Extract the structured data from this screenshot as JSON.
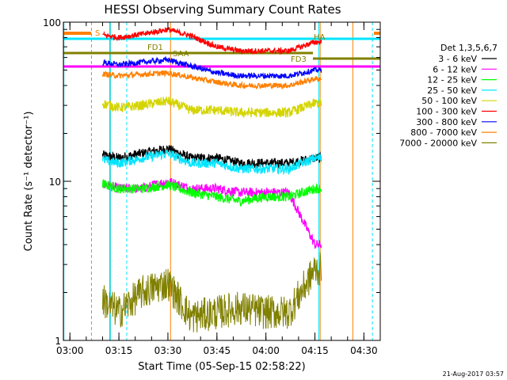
{
  "chart_data": {
    "type": "line",
    "title": "HESSI Observing Summary Count Rates",
    "xlabel": "Start Time (05-Sep-15 02:58:22)",
    "ylabel": "Count Rate (s⁻¹ detector⁻¹)",
    "yscale": "log",
    "xlim": [
      "02:58",
      "04:35"
    ],
    "ylim": [
      1,
      100
    ],
    "x_ticks": [
      "03:00",
      "03:15",
      "03:30",
      "03:45",
      "04:00",
      "04:15",
      "04:30"
    ],
    "y_ticks": [
      "1",
      "10",
      "100"
    ],
    "legend_title": "Det 1,3,5,6,7",
    "legend_position": "right",
    "x": [
      "03:07",
      "03:15",
      "03:22",
      "03:30",
      "03:37",
      "03:45",
      "03:52",
      "04:00",
      "04:07",
      "04:15"
    ],
    "series": [
      {
        "name": "3 - 6 keV",
        "color": "#000000",
        "values": [
          15,
          14,
          15,
          16,
          14,
          14,
          13,
          13,
          13,
          14
        ]
      },
      {
        "name": "6 - 12 keV",
        "color": "#ff00ff",
        "values": [
          10,
          9,
          9,
          10,
          9,
          9,
          8.5,
          8.5,
          8.5,
          4
        ]
      },
      {
        "name": "12 - 25 keV",
        "color": "#00ff00",
        "values": [
          10,
          9,
          9,
          9.5,
          8.5,
          8,
          7.5,
          8,
          8,
          9
        ]
      },
      {
        "name": "25 - 50 keV",
        "color": "#00e5ff",
        "values": [
          14,
          13,
          14,
          15,
          13,
          13,
          12,
          12,
          12,
          14
        ]
      },
      {
        "name": "50 - 100 keV",
        "color": "#d4d400",
        "values": [
          32,
          29,
          30,
          32,
          28,
          28,
          27,
          27,
          27,
          31
        ]
      },
      {
        "name": "100 - 300 keV",
        "color": "#ff0000",
        "values": [
          85,
          80,
          84,
          90,
          82,
          70,
          66,
          66,
          66,
          75
        ]
      },
      {
        "name": "300 - 800 keV",
        "color": "#0000ff",
        "values": [
          57,
          54,
          56,
          58,
          53,
          48,
          46,
          46,
          46,
          50
        ]
      },
      {
        "name": "800 - 7000 keV",
        "color": "#ff8000",
        "values": [
          48,
          46,
          47,
          48,
          45,
          42,
          40,
          40,
          40,
          44
        ]
      },
      {
        "name": "7000 - 20000 keV",
        "color": "#808000",
        "values": [
          2,
          1.5,
          2,
          2.3,
          1.4,
          1.5,
          1.6,
          1.5,
          1.5,
          2.8
        ]
      }
    ],
    "flag_labels": {
      "s": "S",
      "fd1": "FD1",
      "fd3": "FD3",
      "saa": "SAA",
      "ha": "HA"
    },
    "timestamp": "21-Aug-2017 03:57"
  }
}
